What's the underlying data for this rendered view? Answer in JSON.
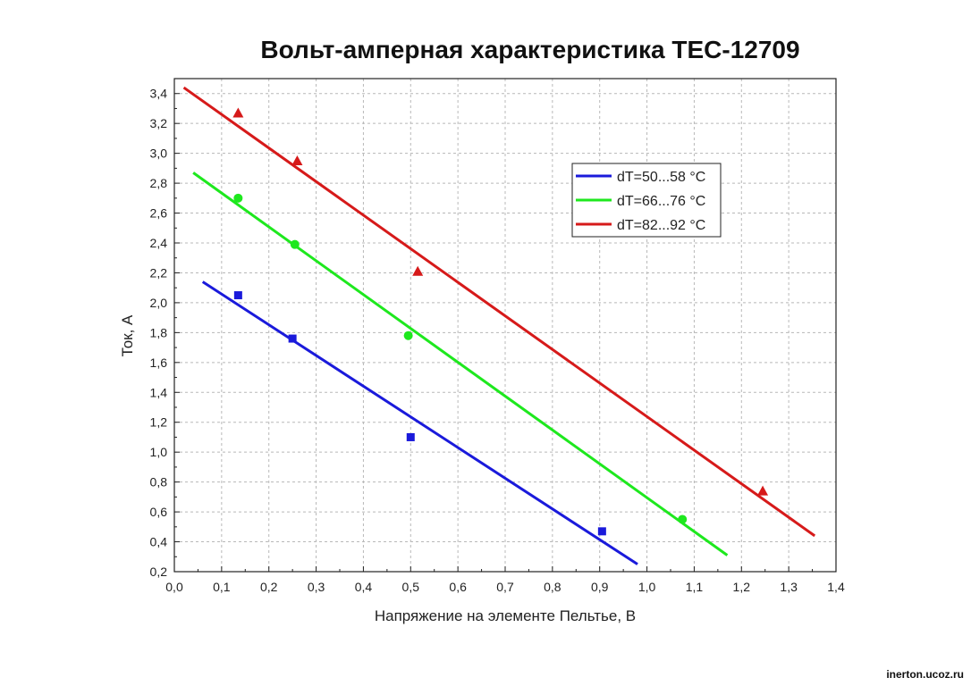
{
  "chart_data": {
    "type": "scatter",
    "title": "Вольт-амперная характеристика TEC-12709",
    "xlabel": "Напряжение на элементе Пельтье, В",
    "ylabel": "Ток, А",
    "xlim": [
      0,
      1.4
    ],
    "ylim": [
      0.2,
      3.5
    ],
    "x_ticks": [
      "0,0",
      "0,1",
      "0,2",
      "0,3",
      "0,4",
      "0,5",
      "0,6",
      "0,7",
      "0,8",
      "0,9",
      "1,0",
      "1,1",
      "1,2",
      "1,3",
      "1,4"
    ],
    "y_ticks": [
      "0,2",
      "0,4",
      "0,6",
      "0,8",
      "1,0",
      "1,2",
      "1,4",
      "1,6",
      "1,8",
      "2,0",
      "2,2",
      "2,4",
      "2,6",
      "2,8",
      "3,0",
      "3,2",
      "3,4"
    ],
    "grid": true,
    "legend_position": "top-right",
    "series": [
      {
        "name": "dT=50...58 °C",
        "color": "#1a1adb",
        "marker": "square",
        "x": [
          0.135,
          0.25,
          0.5,
          0.905
        ],
        "y": [
          2.05,
          1.76,
          1.1,
          0.47
        ],
        "fit": {
          "x": [
            0.06,
            0.98
          ],
          "y": [
            2.14,
            0.25
          ]
        }
      },
      {
        "name": "dT=66...76 °C",
        "color": "#1ee81e",
        "marker": "circle",
        "x": [
          0.135,
          0.255,
          0.495,
          1.075
        ],
        "y": [
          2.7,
          2.39,
          1.78,
          0.55
        ],
        "fit": {
          "x": [
            0.04,
            1.17
          ],
          "y": [
            2.87,
            0.31
          ]
        }
      },
      {
        "name": "dT=82...92 °C",
        "color": "#d61a1a",
        "marker": "triangle",
        "x": [
          0.135,
          0.26,
          0.515,
          1.245
        ],
        "y": [
          3.27,
          2.95,
          2.21,
          0.74
        ],
        "fit": {
          "x": [
            0.02,
            1.355
          ],
          "y": [
            3.44,
            0.44
          ]
        }
      }
    ]
  },
  "watermark": "inerton.ucoz.ru"
}
